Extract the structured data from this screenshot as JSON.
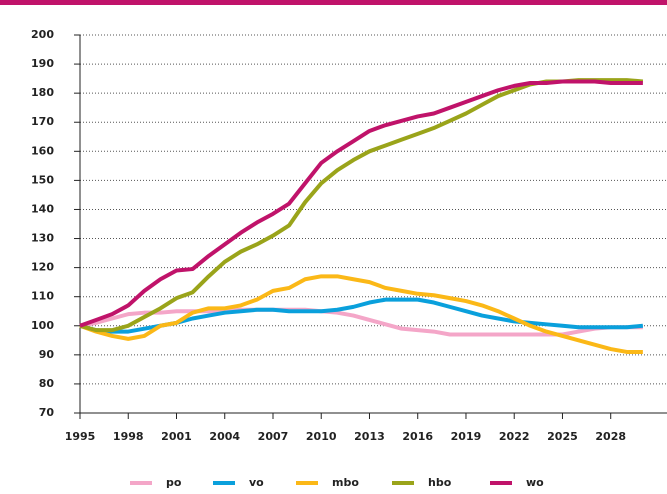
{
  "chart_data": {
    "type": "line",
    "x": [
      1995,
      1996,
      1997,
      1998,
      1999,
      2000,
      2001,
      2002,
      2003,
      2004,
      2005,
      2006,
      2007,
      2008,
      2009,
      2010,
      2011,
      2012,
      2013,
      2014,
      2015,
      2016,
      2017,
      2018,
      2019,
      2020,
      2021,
      2022,
      2023,
      2024,
      2025,
      2026,
      2027,
      2028,
      2029,
      2030
    ],
    "series": [
      {
        "name": "po",
        "color": "#f4a6c8",
        "values": [
          100,
          101,
          102.5,
          104,
          104.5,
          104.5,
          105,
          105,
          105,
          105,
          105.5,
          105.5,
          105.5,
          105.5,
          105.5,
          105,
          104.5,
          103.5,
          102,
          100.5,
          99,
          98.5,
          98,
          97,
          97,
          97,
          97,
          97,
          97,
          97,
          97,
          98,
          99,
          99.5,
          99.5,
          99.5
        ]
      },
      {
        "name": "vo",
        "color": "#0aa0dc",
        "values": [
          100,
          98.5,
          98,
          98,
          99,
          100,
          101,
          102.5,
          103.5,
          104.5,
          105,
          105.5,
          105.5,
          105,
          105,
          105,
          105.5,
          106.5,
          108,
          109,
          109,
          109,
          108,
          106.5,
          105,
          103.5,
          102.5,
          101.5,
          101,
          100.5,
          100,
          99.5,
          99.5,
          99.5,
          99.5,
          100
        ]
      },
      {
        "name": "mbo",
        "color": "#fbb817",
        "values": [
          100,
          98,
          96.5,
          95.5,
          96.5,
          100,
          101,
          104.5,
          106,
          106,
          107,
          109,
          112,
          113,
          116,
          117,
          117,
          116,
          115,
          113,
          112,
          111,
          110.5,
          109.5,
          108.5,
          107,
          105,
          102.5,
          100,
          98,
          96.5,
          95,
          93.5,
          92,
          91,
          91
        ]
      },
      {
        "name": "hbo",
        "color": "#9aa41a",
        "values": [
          100,
          98.5,
          98.5,
          100,
          103,
          106,
          109.5,
          111.5,
          117,
          122,
          125.5,
          128,
          131,
          134.5,
          142.5,
          149,
          153.5,
          157,
          160,
          162,
          164,
          166,
          168,
          170.5,
          173,
          176,
          179,
          181,
          183,
          184,
          184,
          184.5,
          184.5,
          184.5,
          184.5,
          184
        ]
      },
      {
        "name": "wo",
        "color": "#c0136a",
        "values": [
          100,
          102,
          104,
          107,
          112,
          116,
          119,
          119.5,
          124,
          128,
          132,
          135.5,
          138.5,
          142,
          149,
          156,
          160,
          163.5,
          167,
          169,
          170.5,
          172,
          173,
          175,
          177,
          179,
          181,
          182.5,
          183.5,
          183.5,
          184,
          184,
          184,
          183.5,
          183.5,
          183.5
        ]
      }
    ],
    "xlim": [
      1995,
      2031.5
    ],
    "xticks": [
      1995,
      1998,
      2001,
      2004,
      2007,
      2010,
      2013,
      2016,
      2019,
      2022,
      2025,
      2028
    ],
    "ylim": [
      70,
      200
    ],
    "yticks": [
      70,
      80,
      90,
      100,
      110,
      120,
      130,
      140,
      150,
      160,
      170,
      180,
      190,
      200
    ],
    "grid": true,
    "legend": "bottom"
  }
}
